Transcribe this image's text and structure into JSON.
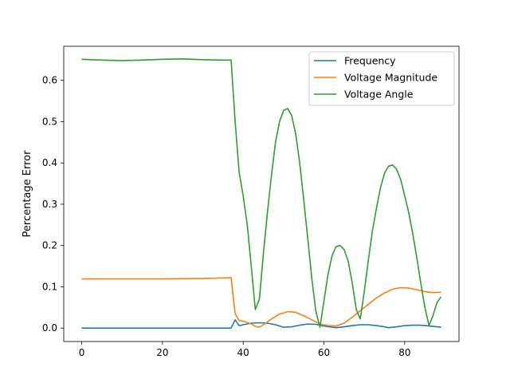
{
  "chart_data": {
    "type": "line",
    "title": "",
    "xlabel": "",
    "ylabel": "Percentage Error",
    "xlim": [
      -4.45,
      93.45
    ],
    "ylim": [
      -0.0325,
      0.6825
    ],
    "xticks": [
      0,
      20,
      40,
      60,
      80
    ],
    "yticks": [
      0.0,
      0.1,
      0.2,
      0.3,
      0.4,
      0.5,
      0.6
    ],
    "ytick_labels": [
      "0.0",
      "0.1",
      "0.2",
      "0.3",
      "0.4",
      "0.5",
      "0.6"
    ],
    "grid": false,
    "legend": "top-right",
    "series": [
      {
        "name": "Frequency",
        "color": "#1f77b4",
        "points": [
          [
            0,
            0.0
          ],
          [
            10,
            0.0
          ],
          [
            20,
            0.0
          ],
          [
            30,
            0.0
          ],
          [
            37,
            0.0
          ],
          [
            38,
            0.02
          ],
          [
            39,
            0.006
          ],
          [
            40,
            0.008
          ],
          [
            42,
            0.012
          ],
          [
            44,
            0.013
          ],
          [
            46,
            0.012
          ],
          [
            48,
            0.008
          ],
          [
            50,
            0.002
          ],
          [
            52,
            0.003
          ],
          [
            54,
            0.007
          ],
          [
            56,
            0.01
          ],
          [
            58,
            0.009
          ],
          [
            60,
            0.005
          ],
          [
            62,
            0.002
          ],
          [
            63,
            0.001
          ],
          [
            65,
            0.003
          ],
          [
            67,
            0.006
          ],
          [
            69,
            0.008
          ],
          [
            71,
            0.008
          ],
          [
            73,
            0.006
          ],
          [
            75,
            0.003
          ],
          [
            76,
            0.001
          ],
          [
            78,
            0.003
          ],
          [
            80,
            0.006
          ],
          [
            82,
            0.007
          ],
          [
            84,
            0.007
          ],
          [
            86,
            0.005
          ],
          [
            88,
            0.003
          ],
          [
            89,
            0.002
          ]
        ]
      },
      {
        "name": "Voltage Magnitude",
        "color": "#ff7f0e",
        "points": [
          [
            0,
            0.119
          ],
          [
            10,
            0.119
          ],
          [
            20,
            0.119
          ],
          [
            30,
            0.12
          ],
          [
            37,
            0.122
          ],
          [
            38,
            0.035
          ],
          [
            39,
            0.018
          ],
          [
            40,
            0.017
          ],
          [
            42,
            0.01
          ],
          [
            43,
            0.004
          ],
          [
            44,
            0.002
          ],
          [
            45,
            0.008
          ],
          [
            47,
            0.022
          ],
          [
            49,
            0.034
          ],
          [
            51,
            0.04
          ],
          [
            53,
            0.038
          ],
          [
            55,
            0.03
          ],
          [
            57,
            0.02
          ],
          [
            59,
            0.01
          ],
          [
            61,
            0.006
          ],
          [
            63,
            0.005
          ],
          [
            65,
            0.012
          ],
          [
            67,
            0.026
          ],
          [
            69,
            0.042
          ],
          [
            71,
            0.058
          ],
          [
            73,
            0.073
          ],
          [
            75,
            0.085
          ],
          [
            77,
            0.094
          ],
          [
            79,
            0.098
          ],
          [
            81,
            0.097
          ],
          [
            83,
            0.093
          ],
          [
            85,
            0.088
          ],
          [
            87,
            0.086
          ],
          [
            89,
            0.087
          ]
        ]
      },
      {
        "name": "Voltage Angle",
        "color": "#2ca02c",
        "points": [
          [
            0,
            0.651
          ],
          [
            5,
            0.649
          ],
          [
            10,
            0.648
          ],
          [
            15,
            0.649
          ],
          [
            20,
            0.651
          ],
          [
            25,
            0.652
          ],
          [
            30,
            0.65
          ],
          [
            35,
            0.649
          ],
          [
            37,
            0.649
          ],
          [
            38,
            0.5
          ],
          [
            39,
            0.378
          ],
          [
            40,
            0.32
          ],
          [
            41,
            0.25
          ],
          [
            42,
            0.15
          ],
          [
            43,
            0.045
          ],
          [
            44,
            0.07
          ],
          [
            45,
            0.18
          ],
          [
            46,
            0.28
          ],
          [
            47,
            0.37
          ],
          [
            48,
            0.45
          ],
          [
            49,
            0.5
          ],
          [
            50,
            0.527
          ],
          [
            51,
            0.532
          ],
          [
            52,
            0.515
          ],
          [
            53,
            0.47
          ],
          [
            54,
            0.4
          ],
          [
            55,
            0.31
          ],
          [
            56,
            0.215
          ],
          [
            57,
            0.12
          ],
          [
            58,
            0.04
          ],
          [
            59,
            0.002
          ],
          [
            60,
            0.065
          ],
          [
            61,
            0.13
          ],
          [
            62,
            0.175
          ],
          [
            63,
            0.197
          ],
          [
            64,
            0.2
          ],
          [
            65,
            0.19
          ],
          [
            66,
            0.162
          ],
          [
            67,
            0.11
          ],
          [
            68,
            0.045
          ],
          [
            69,
            0.022
          ],
          [
            70,
            0.09
          ],
          [
            71,
            0.165
          ],
          [
            72,
            0.235
          ],
          [
            73,
            0.29
          ],
          [
            74,
            0.34
          ],
          [
            75,
            0.375
          ],
          [
            76,
            0.392
          ],
          [
            77,
            0.395
          ],
          [
            78,
            0.385
          ],
          [
            79,
            0.36
          ],
          [
            80,
            0.32
          ],
          [
            81,
            0.28
          ],
          [
            82,
            0.228
          ],
          [
            83,
            0.17
          ],
          [
            84,
            0.108
          ],
          [
            85,
            0.05
          ],
          [
            86,
            0.006
          ],
          [
            87,
            0.03
          ],
          [
            88,
            0.062
          ],
          [
            89,
            0.076
          ]
        ]
      }
    ]
  }
}
